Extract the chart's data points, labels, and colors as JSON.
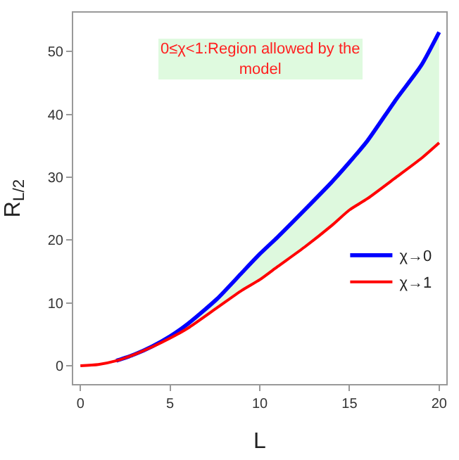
{
  "chart_data": {
    "type": "line",
    "xlabel": "L",
    "ylabel": "R$_{L/2}$",
    "x": [
      0,
      1,
      2,
      3,
      4,
      5,
      6,
      7.6,
      9,
      10,
      11,
      12.5,
      14,
      15,
      16,
      17.6,
      19,
      20
    ],
    "series": [
      {
        "name": "χ→0",
        "color": "#0000ff",
        "values": [
          null,
          null,
          0.8,
          1.8,
          3.1,
          4.7,
          6.7,
          10.6,
          14.8,
          17.8,
          20.5,
          24.8,
          29.2,
          32.4,
          35.8,
          42.4,
          47.8,
          53.1
        ],
        "lower": [
          0,
          0.2,
          0.8,
          1.8,
          3.0,
          4.4,
          6.0,
          9.2,
          12.0,
          13.7,
          15.8,
          18.9,
          22.3,
          24.8,
          26.6,
          30.0,
          33.0,
          35.5
        ],
        "upper": [
          0,
          0.2,
          0.8,
          1.8,
          3.1,
          4.7,
          6.7,
          10.6,
          14.8,
          17.8,
          20.5,
          24.8,
          29.2,
          32.4,
          35.8,
          42.4,
          47.8,
          53.1
        ]
      },
      {
        "name": "χ→1",
        "color": "#ff0000",
        "values": [
          0,
          0.2,
          0.8,
          1.8,
          3.0,
          4.4,
          6.0,
          9.2,
          12.0,
          13.7,
          15.8,
          18.9,
          22.3,
          24.8,
          26.6,
          30.0,
          33.0,
          35.5
        ]
      }
    ],
    "annotations": [
      "0≤χ<1:Region allowed by the model"
    ],
    "xlim": [
      -0.4,
      20.4
    ],
    "ylim": [
      -2.9,
      56.2
    ],
    "xticks": [
      0,
      5,
      10,
      15,
      20
    ],
    "yticks": [
      0,
      10,
      20,
      30,
      40,
      50
    ],
    "legend": "bottom right",
    "marker": "none",
    "line_style": "solid"
  }
}
